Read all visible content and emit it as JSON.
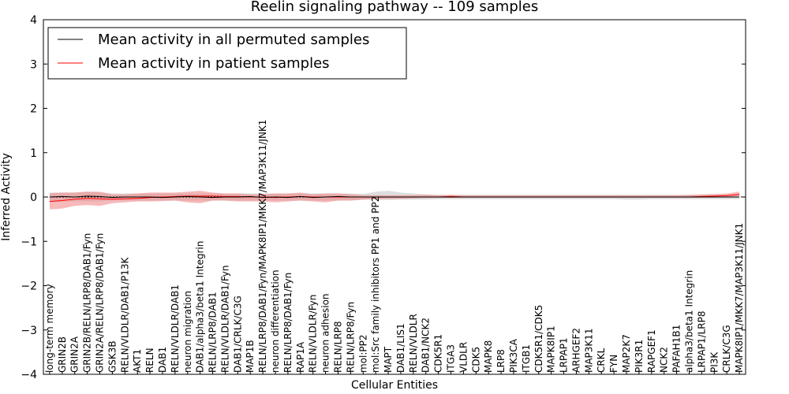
{
  "chart_data": {
    "type": "line",
    "title": "Reelin signaling pathway -- 109 samples",
    "xlabel": "Cellular Entities",
    "ylabel": "Inferred Activity",
    "ylim": [
      -4,
      4
    ],
    "yticks": [
      4,
      3,
      2,
      1,
      0,
      -1,
      -2,
      -3,
      -4
    ],
    "ytick_labels": [
      "4",
      "3",
      "2",
      "1",
      "0",
      "−1",
      "−2",
      "−3",
      "−4"
    ],
    "grid": false,
    "legend_position": "top-left",
    "colors": {
      "permuted": "#000000",
      "patient": "#ff0000",
      "patient_band": "#f08080",
      "permuted_band": "#c8c8c8",
      "baseline": "#000000"
    },
    "categories": [
      "long-term memory",
      "GRIN2B",
      "GRIN2A",
      "GRIN2B/RELN/LRP8/DAB1/Fyn",
      "GRIN2A/RELN/LRP8/DAB1/Fyn",
      "GSK3B",
      "RELN/VLDLR/DAB1/P13K",
      "AKT1",
      "RELN",
      "DAB1",
      "RELN/VLDLR/DAB1",
      "neuron migration",
      "DAB1/alpha3/beta1 Integrin",
      "RELN/LRP8/DAB1",
      "RELN/VLDLR/DAB1/Fyn",
      "DAB1/CRLK/C3G",
      "MAP1B",
      "RELN/LRP8/DAB1/Fyn/MAPK8IP1/MKK7/MAP3K11/JNK1",
      "neuron differentiation",
      "RELN/LRP8/DAB1/Fyn",
      "RAP1A",
      "RELN/VLDLR/Fyn",
      "neuron adhesion",
      "RELN/LRP8",
      "RELN/LRP8/Fyn",
      "mol:PP2",
      "mol:Src family inhibitors PP1 and PP2",
      "MAPT",
      "DAB1/LIS1",
      "RELN/VLDLR",
      "DAB1/NCK2",
      "CDK5R1",
      "ITGA3",
      "VLDLR",
      "CDK5",
      "MAPK8",
      "LRP8",
      "PIK3CA",
      "ITGB1",
      "CDK5R1/CDK5",
      "MAPK8IP1",
      "LRPAP1",
      "ARHGEF2",
      "MAP3K11",
      "CRKL",
      "FYN",
      "MAP2K7",
      "PIK3R1",
      "RAPGEF1",
      "NCK2",
      "PAFAH1B1",
      "alpha3/beta1 Integrin",
      "LRPAP1/LRP8",
      "PI3K",
      "CRLK/C3G",
      "MAPK8IP1/MKK7/MAP3K11/JNK1"
    ],
    "series": [
      {
        "name": "Mean activity in all permuted samples",
        "color": "#000000",
        "values": [
          0.0,
          0.01,
          0.0,
          0.02,
          0.01,
          -0.01,
          0.0,
          0.0,
          0.0,
          -0.01,
          0.0,
          0.01,
          0.0,
          -0.01,
          0.0,
          0.0,
          0.01,
          -0.01,
          0.0,
          -0.01,
          0.01,
          -0.01,
          0.0,
          0.01,
          0.0,
          0.0,
          0.0,
          0.0,
          0.0,
          0.0,
          0.0,
          0.0,
          0.0,
          0.0,
          0.0,
          0.0,
          0.0,
          0.0,
          0.0,
          0.0,
          0.0,
          0.0,
          0.0,
          0.0,
          0.0,
          0.0,
          0.0,
          0.0,
          0.0,
          0.0,
          0.0,
          0.0,
          0.0,
          0.0,
          0.0,
          0.0
        ],
        "band_lower": [
          -0.12,
          -0.1,
          -0.1,
          -0.1,
          -0.1,
          -0.08,
          -0.08,
          -0.08,
          -0.08,
          -0.08,
          -0.08,
          -0.08,
          -0.08,
          -0.08,
          -0.08,
          -0.08,
          -0.08,
          -0.08,
          -0.08,
          -0.08,
          -0.08,
          -0.08,
          -0.08,
          -0.08,
          -0.08,
          -0.06,
          -0.06,
          -0.07,
          -0.06,
          -0.06,
          -0.06,
          -0.05,
          -0.05,
          -0.05,
          -0.05,
          -0.05,
          -0.05,
          -0.05,
          -0.05,
          -0.05,
          -0.05,
          -0.05,
          -0.05,
          -0.05,
          -0.05,
          -0.05,
          -0.06,
          -0.06,
          -0.05,
          -0.05,
          -0.05,
          -0.05,
          -0.05,
          -0.05,
          -0.05,
          -0.05
        ],
        "band_upper": [
          0.1,
          0.1,
          0.1,
          0.12,
          0.1,
          0.08,
          0.08,
          0.08,
          0.08,
          0.08,
          0.08,
          0.08,
          0.08,
          0.08,
          0.08,
          0.08,
          0.08,
          0.08,
          0.08,
          0.08,
          0.08,
          0.08,
          0.08,
          0.08,
          0.08,
          0.07,
          0.12,
          0.14,
          0.1,
          0.08,
          0.06,
          0.05,
          0.05,
          0.05,
          0.05,
          0.05,
          0.05,
          0.05,
          0.05,
          0.05,
          0.05,
          0.05,
          0.05,
          0.05,
          0.05,
          0.05,
          0.05,
          0.05,
          0.05,
          0.05,
          0.05,
          0.05,
          0.05,
          0.05,
          0.05,
          0.05
        ]
      },
      {
        "name": "Mean activity in patient samples",
        "color": "#ff0000",
        "values": [
          -0.1,
          -0.08,
          -0.05,
          -0.03,
          -0.04,
          -0.05,
          -0.04,
          -0.03,
          -0.01,
          0.0,
          0.01,
          0.02,
          0.02,
          0.02,
          0.01,
          0.01,
          0.0,
          0.0,
          -0.01,
          0.0,
          0.01,
          0.0,
          0.0,
          0.0,
          0.0,
          0.0,
          0.0,
          0.0,
          0.0,
          0.0,
          0.0,
          0.0,
          0.01,
          0.0,
          0.0,
          0.0,
          0.0,
          0.0,
          0.0,
          0.0,
          0.0,
          0.0,
          0.0,
          0.0,
          0.0,
          0.0,
          0.0,
          0.0,
          0.0,
          0.0,
          0.0,
          0.0,
          0.01,
          0.02,
          0.03,
          0.06
        ],
        "band_lower": [
          -0.28,
          -0.26,
          -0.2,
          -0.18,
          -0.2,
          -0.14,
          -0.12,
          -0.1,
          -0.1,
          -0.09,
          -0.08,
          -0.12,
          -0.14,
          -0.08,
          -0.08,
          -0.1,
          -0.1,
          -0.1,
          -0.12,
          -0.1,
          -0.08,
          -0.1,
          -0.12,
          -0.08,
          -0.08,
          -0.06,
          -0.05,
          -0.04,
          -0.04,
          -0.03,
          -0.02,
          -0.02,
          -0.02,
          -0.02,
          -0.02,
          -0.02,
          -0.02,
          -0.02,
          -0.02,
          -0.02,
          -0.02,
          -0.02,
          -0.02,
          -0.02,
          -0.02,
          -0.02,
          -0.02,
          -0.02,
          -0.02,
          -0.02,
          -0.02,
          -0.02,
          -0.01,
          -0.01,
          0.0,
          0.02
        ],
        "band_upper": [
          0.08,
          0.1,
          0.1,
          0.12,
          0.12,
          0.06,
          0.06,
          0.08,
          0.1,
          0.1,
          0.1,
          0.12,
          0.14,
          0.1,
          0.08,
          0.08,
          0.06,
          0.06,
          0.08,
          0.08,
          0.1,
          0.06,
          0.08,
          0.08,
          0.06,
          0.04,
          0.04,
          0.04,
          0.04,
          0.04,
          0.05,
          0.04,
          0.05,
          0.04,
          0.04,
          0.04,
          0.04,
          0.04,
          0.04,
          0.04,
          0.04,
          0.04,
          0.04,
          0.04,
          0.04,
          0.04,
          0.04,
          0.04,
          0.04,
          0.04,
          0.04,
          0.05,
          0.06,
          0.07,
          0.08,
          0.12
        ]
      }
    ]
  }
}
